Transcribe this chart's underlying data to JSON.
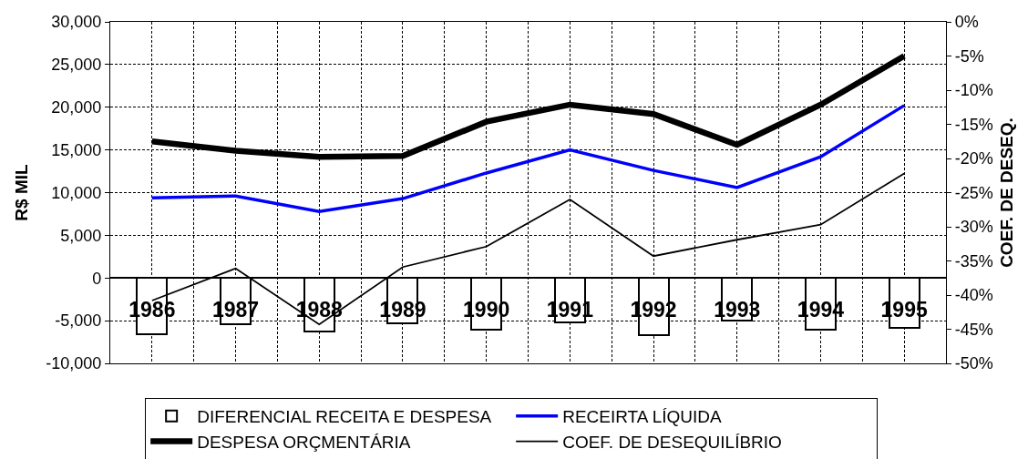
{
  "chart_data": {
    "type": "bar",
    "categories": [
      "1986",
      "1987",
      "1988",
      "1989",
      "1990",
      "1991",
      "1992",
      "1993",
      "1994",
      "1995"
    ],
    "series": [
      {
        "name": "DIFERENCIAL RECEITA E DESPESA",
        "color": "#ffffff",
        "values": [
          -6600,
          -5400,
          -6300,
          -5300,
          -6000,
          -5200,
          -6700,
          -5000,
          -6000,
          -5800
        ]
      },
      {
        "name": "RECEIRTA LÍQUIDA",
        "type": "line",
        "color": "#0000ff",
        "values": [
          9400,
          9600,
          7800,
          9300,
          12300,
          15000,
          12600,
          10600,
          14200,
          20200
        ]
      },
      {
        "name": "DESPESA ORÇMENTÁRIA",
        "type": "line",
        "color": "#000000",
        "values": [
          16000,
          14900,
          14200,
          14300,
          18300,
          20300,
          19200,
          15600,
          20300,
          26000
        ]
      },
      {
        "name": "COEF. DE DESEQUILÍBRIO",
        "type": "line",
        "color": "#000000",
        "axis": "y2",
        "values": [
          -40.8,
          -36.1,
          -44.3,
          -35.9,
          -32.9,
          -26.0,
          -34.3,
          -31.9,
          -29.7,
          -22.2
        ]
      }
    ],
    "ylabel": "R$ MIL",
    "y2label": "COEF. DE DESEQ.",
    "ylim": [
      -10000,
      30000
    ],
    "yticks": [
      {
        "value": -10000,
        "label": "-10,000"
      },
      {
        "value": -5000,
        "label": "-5,000"
      },
      0,
      {
        "value": 5000,
        "label": "5,000"
      },
      {
        "value": 10000,
        "label": "10,000"
      },
      {
        "value": 15000,
        "label": "15,000"
      },
      {
        "value": 20000,
        "label": "20,000"
      },
      {
        "value": 25000,
        "label": "25,000"
      },
      {
        "value": 30000,
        "label": "30,000"
      }
    ],
    "y2lim": [
      -50,
      0
    ],
    "y2ticks": [
      {
        "value": -50,
        "label": "-50%"
      },
      {
        "value": -45,
        "label": "-45%"
      },
      {
        "value": -40,
        "label": "-40%"
      },
      {
        "value": -35,
        "label": "-35%"
      },
      {
        "value": -30,
        "label": "-30%"
      },
      {
        "value": -25,
        "label": "-25%"
      },
      {
        "value": -20,
        "label": "-20%"
      },
      {
        "value": -15,
        "label": "-15%"
      },
      {
        "value": -10,
        "label": "-10%"
      },
      {
        "value": -5,
        "label": "-5%"
      },
      {
        "value": 0,
        "label": "0%"
      }
    ],
    "grid": true,
    "legend": "bottom"
  }
}
